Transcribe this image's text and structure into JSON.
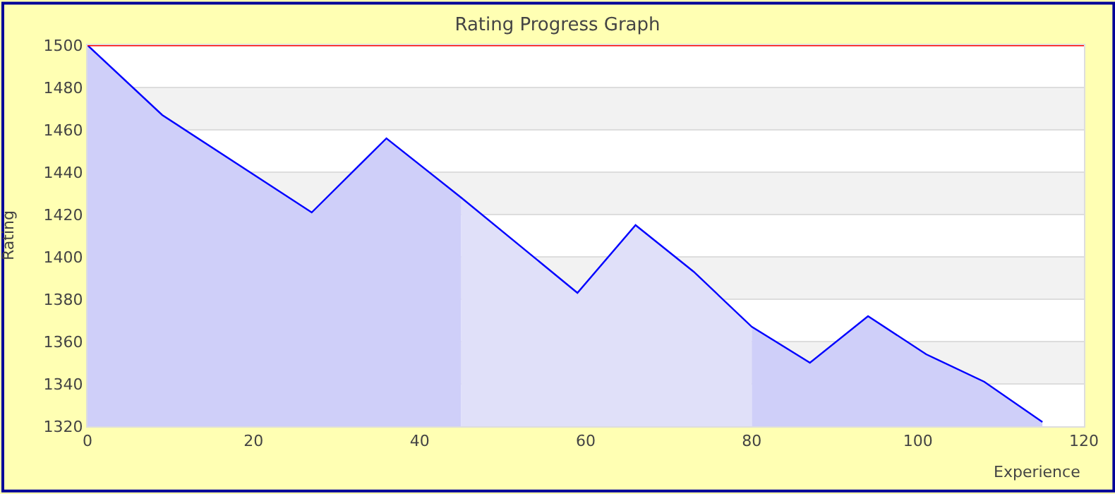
{
  "chart_data": {
    "type": "area",
    "title": "Rating Progress Graph",
    "xlabel": "Experience",
    "ylabel": "Rating",
    "series": [
      {
        "color": "#cfcff9",
        "x": [
          0,
          9,
          27,
          36,
          45
        ],
        "values": [
          1500,
          1467,
          1421,
          1456,
          1428
        ]
      },
      {
        "color": "#e0e0f9",
        "x": [
          45,
          59,
          66,
          73,
          80
        ],
        "values": [
          1428,
          1383,
          1415,
          1393,
          1367
        ]
      },
      {
        "color": "#cfcff9",
        "x": [
          80,
          87,
          94,
          101,
          108,
          115
        ],
        "values": [
          1367,
          1350,
          1372,
          1354,
          1341,
          1322
        ]
      },
      {
        "type": "line",
        "color": "#0000ff",
        "x": [
          0,
          9,
          27,
          36,
          45,
          59,
          66,
          73,
          80,
          87,
          94,
          101,
          108,
          115
        ],
        "values": [
          1500,
          1467,
          1421,
          1456,
          1428,
          1383,
          1415,
          1393,
          1367,
          1350,
          1372,
          1354,
          1341,
          1322
        ]
      }
    ],
    "xlim": [
      0,
      120
    ],
    "xticks": [
      0,
      20,
      40,
      60,
      80,
      100,
      120
    ],
    "ylim": [
      1320,
      1500
    ],
    "yticks": [
      1320,
      1340,
      1360,
      1380,
      1400,
      1420,
      1440,
      1460,
      1480,
      1500
    ],
    "grid": "y",
    "marker": "none",
    "line_style": "solid",
    "bands": [
      {
        "axis": "y",
        "from": 1340,
        "to": 1360,
        "color": "#f2f2f2"
      },
      {
        "axis": "y",
        "from": 1380,
        "to": 1400,
        "color": "#f2f2f2"
      },
      {
        "axis": "y",
        "from": 1420,
        "to": 1440,
        "color": "#f2f2f2"
      },
      {
        "axis": "y",
        "from": 1460,
        "to": 1480,
        "color": "#f2f2f2"
      }
    ],
    "ref_lines": [
      {
        "axis": "y",
        "value": 1500,
        "color": "#ff0000",
        "line_style": "solid"
      }
    ]
  }
}
